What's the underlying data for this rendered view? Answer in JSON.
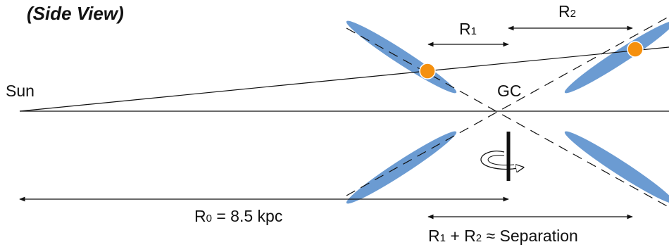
{
  "labels": {
    "title": "(Side View)",
    "sun": "Sun",
    "gc": "GC",
    "r1_main": "R",
    "r1_sub": "1",
    "r2_main": "R",
    "r2_sub": "2",
    "r0_main": "R",
    "r0_sub": "0",
    "r0_rest": " = 8.5 kpc",
    "sep_a": "R",
    "sep_a_sub": "1",
    "sep_mid": " + R",
    "sep_b_sub": "2",
    "sep_rest": " ≈ Separation"
  },
  "colors": {
    "disk_fill": "#6b9bd2",
    "star_fill": "#f5900e",
    "line": "#111111"
  }
}
